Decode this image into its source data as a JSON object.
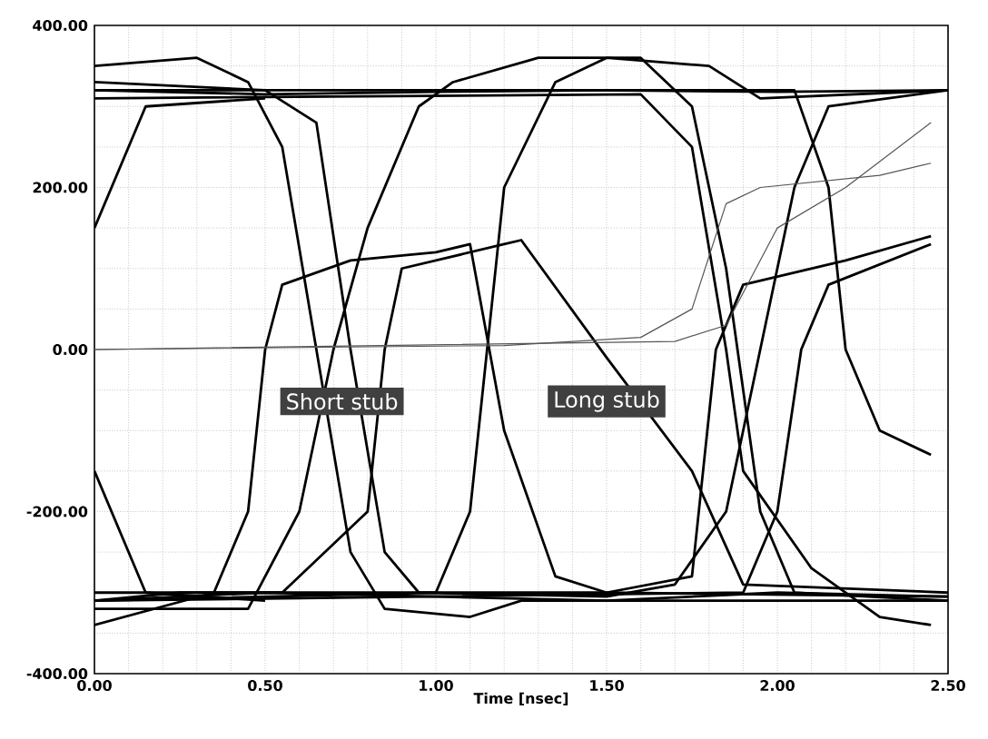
{
  "chart_data": {
    "type": "line",
    "xlabel": "Time [nsec]",
    "xlim": [
      0,
      2.5
    ],
    "ylim": [
      -400,
      400
    ],
    "xticks": [
      {
        "value": 0,
        "label": "0.00"
      },
      {
        "value": 0.1,
        "label": null
      },
      {
        "value": 0.2,
        "label": null
      },
      {
        "value": 0.3,
        "label": null
      },
      {
        "value": 0.4,
        "label": null
      },
      {
        "value": 0.5,
        "label": "0.50"
      },
      {
        "value": 0.6,
        "label": null
      },
      {
        "value": 0.7,
        "label": null
      },
      {
        "value": 0.8,
        "label": null
      },
      {
        "value": 0.9,
        "label": null
      },
      {
        "value": 1.0,
        "label": "1.00"
      },
      {
        "value": 1.1,
        "label": null
      },
      {
        "value": 1.2,
        "label": null
      },
      {
        "value": 1.3,
        "label": null
      },
      {
        "value": 1.4,
        "label": null
      },
      {
        "value": 1.5,
        "label": "1.50"
      },
      {
        "value": 1.6,
        "label": null
      },
      {
        "value": 1.7,
        "label": null
      },
      {
        "value": 1.8,
        "label": null
      },
      {
        "value": 1.9,
        "label": null
      },
      {
        "value": 2.0,
        "label": "2.00"
      },
      {
        "value": 2.1,
        "label": null
      },
      {
        "value": 2.2,
        "label": null
      },
      {
        "value": 2.3,
        "label": null
      },
      {
        "value": 2.4,
        "label": null
      },
      {
        "value": 2.5,
        "label": "2.50"
      }
    ],
    "yticks": [
      {
        "value": -400,
        "label": "-400.00"
      },
      {
        "value": -350,
        "label": null
      },
      {
        "value": -300,
        "label": null
      },
      {
        "value": -250,
        "label": null
      },
      {
        "value": -200,
        "label": "-200.00"
      },
      {
        "value": -150,
        "label": null
      },
      {
        "value": -100,
        "label": null
      },
      {
        "value": -50,
        "label": null
      },
      {
        "value": 0,
        "label": "0.00"
      },
      {
        "value": 50,
        "label": null
      },
      {
        "value": 100,
        "label": null
      },
      {
        "value": 150,
        "label": null
      },
      {
        "value": 200,
        "label": "200.00"
      },
      {
        "value": 250,
        "label": null
      },
      {
        "value": 300,
        "label": null
      },
      {
        "value": 350,
        "label": null
      },
      {
        "value": 400,
        "label": "400.00"
      }
    ],
    "grid": true,
    "marker": "none",
    "line_style": "solid",
    "annotations": [
      "Short stub",
      "Long stub"
    ],
    "series": [
      {
        "color": "#000000",
        "x": [
          0,
          0.5,
          1,
          1.5,
          2,
          2.5
        ],
        "values": [
          320,
          315,
          318,
          320,
          318,
          320
        ]
      },
      {
        "color": "#000000",
        "x": [
          0,
          0.5,
          1,
          1.5,
          2,
          2.5
        ],
        "values": [
          -310,
          -300,
          -305,
          -310,
          -300,
          -305
        ]
      },
      {
        "color": "#000000",
        "x": [
          0,
          0.3,
          0.45,
          0.55,
          0.65,
          0.75,
          0.85,
          1.1,
          1.25,
          2.5
        ],
        "values": [
          350,
          360,
          330,
          250,
          0,
          -250,
          -320,
          -330,
          -310,
          -310
        ]
      },
      {
        "color": "#000000",
        "x": [
          0,
          0.5,
          0.65,
          0.75,
          0.85,
          0.95,
          1.5,
          1.7,
          1.85,
          1.95,
          2.05,
          2.15,
          2.5
        ],
        "values": [
          330,
          320,
          280,
          0,
          -250,
          -300,
          -305,
          -290,
          -200,
          0,
          200,
          300,
          320
        ]
      },
      {
        "color": "#000000",
        "x": [
          0,
          0.35,
          0.45,
          0.5,
          0.55,
          0.75,
          1.0,
          1.1,
          1.2,
          1.35,
          1.5,
          2.5
        ],
        "values": [
          -340,
          -300,
          -200,
          0,
          80,
          110,
          120,
          130,
          -100,
          -280,
          -300,
          -305
        ]
      },
      {
        "color": "#000000",
        "x": [
          0,
          0.45,
          0.6,
          0.7,
          0.8,
          0.95,
          1.05,
          1.3,
          1.6,
          1.75,
          1.85,
          1.95,
          2.05,
          2.5
        ],
        "values": [
          -320,
          -320,
          -200,
          0,
          150,
          300,
          330,
          360,
          360,
          300,
          100,
          -200,
          -300,
          -310
        ]
      },
      {
        "color": "#000000",
        "x": [
          0,
          0.25,
          0.55,
          0.8,
          0.85,
          0.9,
          1.2,
          1.25,
          1.5,
          1.75,
          1.9,
          2.5
        ],
        "values": [
          -310,
          -300,
          -300,
          -200,
          0,
          100,
          130,
          135,
          -10,
          -150,
          -290,
          -300
        ]
      },
      {
        "color": "#000000",
        "x": [
          0,
          1.0,
          1.1,
          1.15,
          1.2,
          1.35,
          1.5,
          1.8,
          1.95,
          2.5
        ],
        "values": [
          -310,
          -300,
          -200,
          0,
          200,
          330,
          360,
          350,
          310,
          320
        ]
      },
      {
        "color": "#000000",
        "x": [
          0,
          1.6,
          1.75,
          1.85,
          1.9,
          2.1,
          2.3,
          2.45
        ],
        "values": [
          310,
          315,
          250,
          0,
          -150,
          -270,
          -330,
          -340
        ]
      },
      {
        "color": "#000000",
        "x": [
          0,
          1.5,
          1.75,
          1.82,
          1.9,
          2.2,
          2.45
        ],
        "values": [
          -300,
          -300,
          -280,
          0,
          80,
          110,
          140
        ]
      },
      {
        "color": "#000000",
        "x": [
          0,
          1.9,
          2.0,
          2.07,
          2.15,
          2.45
        ],
        "values": [
          -310,
          -300,
          -200,
          0,
          80,
          130
        ]
      },
      {
        "color": "#000000",
        "x": [
          0,
          0.15,
          0.5
        ],
        "values": [
          150,
          300,
          310
        ]
      },
      {
        "color": "#000000",
        "x": [
          0,
          0.15,
          0.5
        ],
        "values": [
          -150,
          -300,
          -310
        ]
      },
      {
        "color": "#000000",
        "x": [
          0,
          2.05,
          2.15,
          2.2,
          2.3,
          2.45
        ],
        "values": [
          320,
          320,
          200,
          0,
          -100,
          -130
        ]
      },
      {
        "color": "#555555",
        "x": [
          0,
          1.2,
          1.6,
          1.75,
          1.85,
          1.95,
          2.3,
          2.45
        ],
        "values": [
          0,
          5,
          15,
          50,
          180,
          200,
          215,
          230
        ]
      },
      {
        "color": "#555555",
        "x": [
          0,
          1.7,
          1.85,
          2.0,
          2.2,
          2.45
        ],
        "values": [
          0,
          10,
          30,
          150,
          200,
          280
        ]
      }
    ]
  }
}
